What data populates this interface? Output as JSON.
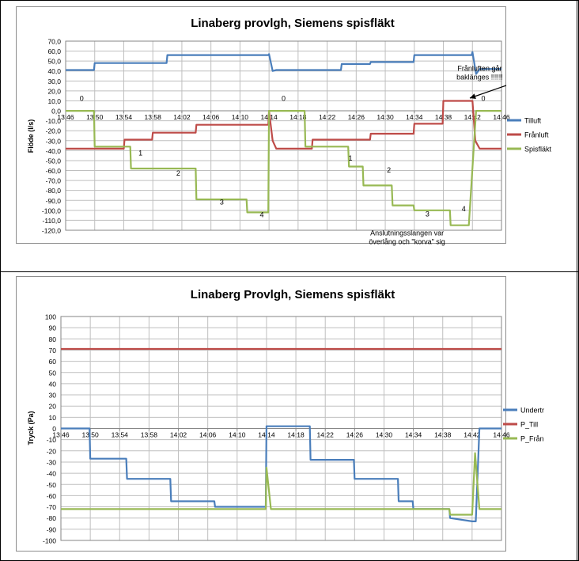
{
  "chart_data": [
    {
      "type": "line",
      "title": "Linaberg provlgh, Siemens spisfläkt",
      "ylabel": "Flöde (l/s)",
      "xlabel": "",
      "ylim": [
        -120,
        70
      ],
      "ytick_step": 10,
      "ytick_labels": [
        "70,0",
        "60,0",
        "50,0",
        "40,0",
        "30,0",
        "20,0",
        "10,0",
        "0,0",
        "-10,0",
        "-20,0",
        "-30,0",
        "-40,0",
        "-50,0",
        "-60,0",
        "-70,0",
        "-80,0",
        "-90,0",
        "-100,0",
        "-110,0",
        "-120,0"
      ],
      "xlim": [
        0,
        60
      ],
      "xtick_labels": [
        "13:46",
        "13:50",
        "13:54",
        "13:58",
        "14:02",
        "14:06",
        "14:10",
        "14:14",
        "14:18",
        "14:22",
        "14:26",
        "14:30",
        "14:34",
        "14:38",
        "14:42",
        "14:46"
      ],
      "grid": true,
      "legend_position": "right",
      "series": [
        {
          "name": "Tilluft",
          "color": "#4a7ebb",
          "x": [
            0,
            3.9,
            4.0,
            13.9,
            14.0,
            27.9,
            28.0,
            28.5,
            29.0,
            37.9,
            38.0,
            41.9,
            42.0,
            47.9,
            48.0,
            55.9,
            56.0,
            56.5,
            57,
            60
          ],
          "y": [
            41,
            41,
            48,
            48,
            56,
            56,
            57,
            40,
            41,
            41,
            47,
            47,
            49,
            49,
            56,
            56,
            59,
            37,
            42,
            42
          ]
        },
        {
          "name": "Frånluft",
          "color": "#be4b48",
          "x": [
            0,
            8.0,
            8.1,
            11.9,
            12.0,
            17.9,
            18.0,
            27.9,
            28.0,
            28.5,
            29.0,
            33.9,
            34.0,
            41.9,
            42.0,
            47.9,
            48.0,
            51.9,
            52.0,
            56.0,
            56.4,
            57,
            60
          ],
          "y": [
            -38,
            -38,
            -29,
            -29,
            -22,
            -22,
            -14,
            -14,
            0,
            -30,
            -38,
            -38,
            -29,
            -29,
            -23,
            -23,
            -13,
            -13,
            10,
            10,
            -30,
            -38,
            -38
          ]
        },
        {
          "name": "Spisfläkt",
          "color": "#98b954",
          "x": [
            0,
            3.9,
            4.0,
            8.9,
            9.0,
            17.9,
            18.0,
            24.9,
            25.0,
            26.9,
            27.0,
            27.9,
            28.0,
            32.9,
            33.0,
            38.9,
            39.0,
            40.9,
            41.0,
            44.9,
            45.0,
            47.9,
            48.0,
            52.9,
            53.0,
            54.9,
            55.5,
            56.5,
            57,
            60
          ],
          "y": [
            0,
            0,
            -36,
            -36,
            -58,
            -58,
            -89,
            -89,
            -102,
            -102,
            -102,
            -102,
            0,
            0,
            -36,
            -36,
            -56,
            -56,
            -75,
            -75,
            -95,
            -95,
            -100,
            -100,
            -115,
            -115,
            -115,
            0,
            0,
            0
          ]
        }
      ],
      "annotations": [
        {
          "text": "0",
          "x": 2.2,
          "y": 10
        },
        {
          "text": "0",
          "x": 30.0,
          "y": 10
        },
        {
          "text": "0",
          "x": 57.5,
          "y": 10
        },
        {
          "text": "1",
          "x": 10.3,
          "y": -45
        },
        {
          "text": "1",
          "x": 39.2,
          "y": -50
        },
        {
          "text": "2",
          "x": 15.5,
          "y": -65
        },
        {
          "text": "2",
          "x": 44.5,
          "y": -62
        },
        {
          "text": "3",
          "x": 21.5,
          "y": -94
        },
        {
          "text": "3",
          "x": 49.8,
          "y": -106
        },
        {
          "text": "4",
          "x": 27.0,
          "y": -107
        },
        {
          "text": "4",
          "x": 54.8,
          "y": -101
        },
        {
          "text": "Frånluften går baklänges !!!!!!",
          "x": 57,
          "y": 40
        },
        {
          "text": "Anslutningsslangen var överlång och \"korva\" sig",
          "x": 47,
          "y": -125
        }
      ]
    },
    {
      "type": "line",
      "title": "Linaberg Provlgh, Siemens spisfläkt",
      "ylabel": "Tryck (Pa)",
      "xlabel": "",
      "ylim": [
        -100,
        100
      ],
      "ytick_step": 10,
      "ytick_labels": [
        "100",
        "90",
        "80",
        "70",
        "60",
        "50",
        "40",
        "30",
        "20",
        "10",
        "0",
        "-10",
        "-20",
        "-30",
        "-40",
        "-50",
        "-60",
        "-70",
        "-80",
        "-90",
        "-100"
      ],
      "xlim": [
        0,
        60
      ],
      "xtick_labels": [
        "13:46",
        "13:50",
        "13:54",
        "13:58",
        "14:02",
        "14:06",
        "14:10",
        "14:14",
        "14:18",
        "14:22",
        "14:26",
        "14:30",
        "14:34",
        "14:38",
        "14:42",
        "14:46"
      ],
      "grid": true,
      "legend_position": "right",
      "series": [
        {
          "name": "Undertr",
          "color": "#4a7ebb",
          "x": [
            0,
            3.9,
            4.0,
            8.9,
            9.0,
            14.9,
            15.0,
            20.9,
            21.0,
            27.9,
            28.0,
            33.9,
            34.0,
            39.9,
            40.0,
            45.9,
            46.0,
            47.9,
            48.0,
            52.9,
            53.0,
            56.0,
            56.5,
            57.0,
            60
          ],
          "y": [
            0,
            0,
            -27,
            -27,
            -45,
            -45,
            -65,
            -65,
            -70,
            -70,
            2,
            2,
            -28,
            -28,
            -45,
            -45,
            -65,
            -65,
            -72,
            -72,
            -80,
            -83,
            -83,
            0,
            0
          ]
        },
        {
          "name": "P_Till",
          "color": "#be4b48",
          "x": [
            0,
            60
          ],
          "y": [
            71,
            71
          ]
        },
        {
          "name": "P_Från",
          "color": "#98b954",
          "x": [
            0,
            27.9,
            28.0,
            28.6,
            29.0,
            52.9,
            53.0,
            56.0,
            56.4,
            57.0,
            60
          ],
          "y": [
            -72,
            -72,
            -35,
            -72,
            -72,
            -72,
            -77,
            -77,
            -22,
            -72,
            -72
          ]
        }
      ]
    }
  ]
}
